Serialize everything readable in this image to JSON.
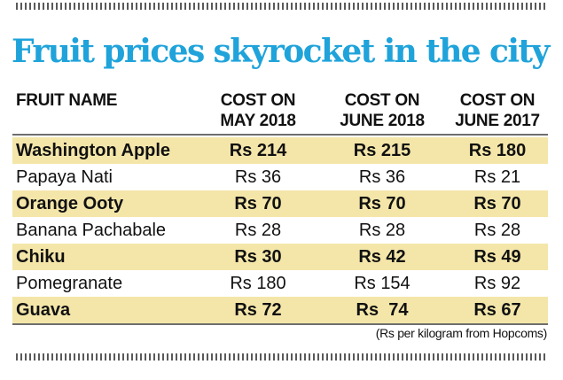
{
  "chart_data": {
    "type": "table",
    "title": "Fruit prices skyrocket in the city",
    "headers": {
      "name": "FRUIT NAME",
      "columns": [
        [
          "COST ON",
          "MAY 2018"
        ],
        [
          "COST ON",
          "JUNE 2018"
        ],
        [
          "COST ON",
          "JUNE 2017"
        ]
      ]
    },
    "rows": [
      {
        "name": "Washington Apple",
        "values": [
          "Rs 214",
          "Rs 215",
          "Rs 180"
        ],
        "numeric": [
          214,
          215,
          180
        ],
        "shaded": true
      },
      {
        "name": "Papaya Nati",
        "values": [
          "Rs 36",
          "Rs 36",
          "Rs 21"
        ],
        "numeric": [
          36,
          36,
          21
        ],
        "shaded": false
      },
      {
        "name": "Orange Ooty",
        "values": [
          "Rs 70",
          "Rs 70",
          "Rs 70"
        ],
        "numeric": [
          70,
          70,
          70
        ],
        "shaded": true
      },
      {
        "name": "Banana Pachabale",
        "values": [
          "Rs 28",
          "Rs 28",
          "Rs 28"
        ],
        "numeric": [
          28,
          28,
          28
        ],
        "shaded": false
      },
      {
        "name": "Chiku",
        "values": [
          "Rs 30",
          "Rs 42",
          "Rs 49"
        ],
        "numeric": [
          30,
          42,
          49
        ],
        "shaded": true
      },
      {
        "name": "Pomegranate",
        "values": [
          "Rs 180",
          "Rs 154",
          "Rs 92"
        ],
        "numeric": [
          180,
          154,
          92
        ],
        "shaded": false
      },
      {
        "name": "Guava",
        "values": [
          "Rs 72",
          "Rs  74",
          "Rs 67"
        ],
        "numeric": [
          72,
          74,
          67
        ],
        "shaded": true
      }
    ],
    "footnote": "(Rs per kilogram from Hopcoms)"
  },
  "colors": {
    "title": "#1fa3da",
    "shade": "#f4e6a9",
    "text": "#111111",
    "rule": "#6e6e6e"
  }
}
